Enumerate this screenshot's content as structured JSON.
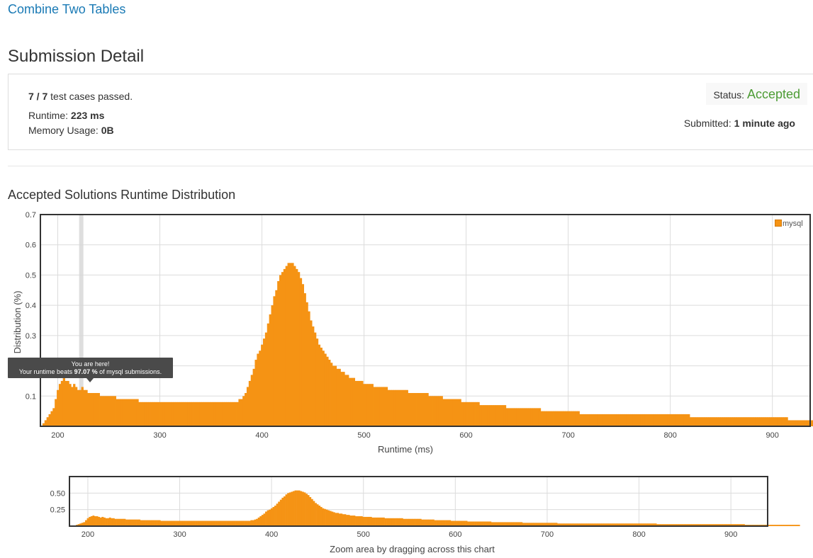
{
  "problem": {
    "title": "Combine Two Tables"
  },
  "page": {
    "title": "Submission Detail"
  },
  "submission": {
    "tests_passed": "7",
    "tests_sep": " / ",
    "tests_total": "7",
    "tests_suffix": " test cases passed.",
    "runtime_label": "Runtime: ",
    "runtime_value": "223 ms",
    "memory_label": "Memory Usage: ",
    "memory_value": "0B",
    "status_label": "Status: ",
    "status_value": "Accepted",
    "submitted_label": "Submitted: ",
    "submitted_value": "1 minute ago"
  },
  "distribution": {
    "title": "Accepted Solutions Runtime Distribution",
    "tooltip_line1": "You are here!",
    "tooltip_prefix": "Your runtime beats ",
    "tooltip_percent": "97.07 %",
    "tooltip_suffix": " of mysql submissions.",
    "zoom_hint": "Zoom area by dragging across this chart"
  },
  "colors": {
    "bar": "#f59314",
    "accent_link": "#1a7ab5",
    "accepted": "#4d9c35"
  },
  "chart_data": [
    {
      "type": "bar",
      "xlabel": "Runtime (ms)",
      "ylabel": "Distribution (%)",
      "xlim": [
        183,
        937
      ],
      "ylim": [
        0,
        0.7
      ],
      "xticks": [
        200,
        300,
        400,
        500,
        600,
        700,
        800,
        900
      ],
      "yticks": [
        0.1,
        0.2,
        0.3,
        0.4,
        0.5,
        0.6,
        0.7
      ],
      "legend": "mysql",
      "legend_position": "top-right",
      "highlight_x": 223,
      "series": [
        {
          "name": "mysql",
          "x_start": 186,
          "x_step": 2,
          "values": [
            0.01,
            0.02,
            0.03,
            0.04,
            0.05,
            0.06,
            0.09,
            0.12,
            0.14,
            0.15,
            0.16,
            0.15,
            0.15,
            0.14,
            0.13,
            0.14,
            0.13,
            0.12,
            0.12,
            0.13,
            0.12,
            0.12,
            0.11,
            0.11,
            0.11,
            0.11,
            0.11,
            0.11,
            0.1,
            0.1,
            0.1,
            0.1,
            0.1,
            0.1,
            0.1,
            0.1,
            0.09,
            0.09,
            0.09,
            0.09,
            0.09,
            0.09,
            0.09,
            0.09,
            0.09,
            0.09,
            0.09,
            0.08,
            0.08,
            0.08,
            0.08,
            0.08,
            0.08,
            0.08,
            0.08,
            0.08,
            0.08,
            0.08,
            0.08,
            0.08,
            0.08,
            0.08,
            0.08,
            0.08,
            0.08,
            0.08,
            0.08,
            0.08,
            0.08,
            0.08,
            0.08,
            0.08,
            0.08,
            0.08,
            0.08,
            0.08,
            0.08,
            0.08,
            0.08,
            0.08,
            0.08,
            0.08,
            0.08,
            0.08,
            0.08,
            0.08,
            0.08,
            0.08,
            0.08,
            0.08,
            0.08,
            0.08,
            0.08,
            0.08,
            0.08,
            0.08,
            0.09,
            0.09,
            0.1,
            0.11,
            0.13,
            0.15,
            0.17,
            0.19,
            0.22,
            0.24,
            0.25,
            0.27,
            0.29,
            0.31,
            0.34,
            0.37,
            0.4,
            0.43,
            0.45,
            0.48,
            0.5,
            0.51,
            0.52,
            0.53,
            0.54,
            0.54,
            0.54,
            0.53,
            0.52,
            0.51,
            0.49,
            0.47,
            0.44,
            0.41,
            0.38,
            0.35,
            0.33,
            0.31,
            0.29,
            0.27,
            0.26,
            0.25,
            0.24,
            0.23,
            0.22,
            0.21,
            0.2,
            0.2,
            0.19,
            0.19,
            0.18,
            0.18,
            0.17,
            0.17,
            0.16,
            0.16,
            0.16,
            0.15,
            0.15,
            0.15,
            0.15,
            0.14,
            0.14,
            0.14,
            0.14,
            0.14,
            0.13,
            0.13,
            0.13,
            0.13,
            0.13,
            0.13,
            0.13,
            0.12,
            0.12,
            0.12,
            0.12,
            0.12,
            0.12,
            0.12,
            0.12,
            0.12,
            0.12,
            0.11,
            0.11,
            0.11,
            0.11,
            0.11,
            0.11,
            0.11,
            0.11,
            0.11,
            0.11,
            0.1,
            0.1,
            0.1,
            0.1,
            0.1,
            0.1,
            0.1,
            0.09,
            0.09,
            0.09,
            0.09,
            0.09,
            0.09,
            0.09,
            0.09,
            0.09,
            0.08,
            0.08,
            0.08,
            0.08,
            0.08,
            0.08,
            0.08,
            0.08,
            0.08,
            0.07,
            0.07,
            0.07,
            0.07,
            0.07,
            0.07,
            0.07,
            0.07,
            0.07,
            0.07,
            0.07,
            0.07,
            0.07,
            0.06,
            0.06,
            0.06,
            0.06,
            0.06,
            0.06,
            0.06,
            0.06,
            0.06,
            0.06,
            0.06,
            0.06,
            0.06,
            0.06,
            0.06,
            0.06,
            0.06,
            0.05,
            0.05,
            0.05,
            0.05,
            0.05,
            0.05,
            0.05,
            0.05,
            0.05,
            0.05,
            0.05,
            0.05,
            0.05,
            0.05,
            0.05,
            0.05,
            0.05,
            0.05,
            0.05,
            0.04,
            0.04,
            0.04,
            0.04,
            0.04,
            0.04,
            0.04,
            0.04,
            0.04,
            0.04,
            0.04,
            0.04,
            0.04,
            0.04,
            0.04,
            0.04,
            0.04,
            0.04,
            0.04,
            0.04,
            0.04,
            0.04,
            0.04,
            0.04,
            0.04,
            0.04,
            0.04,
            0.04,
            0.04,
            0.04,
            0.04,
            0.04,
            0.04,
            0.04,
            0.04,
            0.04,
            0.04,
            0.04,
            0.04,
            0.04,
            0.04,
            0.04,
            0.04,
            0.04,
            0.04,
            0.04,
            0.04,
            0.04,
            0.04,
            0.04,
            0.04,
            0.04,
            0.04,
            0.04,
            0.03,
            0.03,
            0.03,
            0.03,
            0.03,
            0.03,
            0.03,
            0.03,
            0.03,
            0.03,
            0.03,
            0.03,
            0.03,
            0.03,
            0.03,
            0.03,
            0.03,
            0.03,
            0.03,
            0.03,
            0.03,
            0.03,
            0.03,
            0.03,
            0.03,
            0.03,
            0.03,
            0.03,
            0.03,
            0.03,
            0.03,
            0.03,
            0.03,
            0.03,
            0.03,
            0.03,
            0.03,
            0.03,
            0.03,
            0.03,
            0.03,
            0.03,
            0.03,
            0.03,
            0.03,
            0.03,
            0.03,
            0.03,
            0.02,
            0.02,
            0.02,
            0.02,
            0.02,
            0.02,
            0.02,
            0.02,
            0.02,
            0.02,
            0.02,
            0.02,
            0.02,
            0.02,
            0.02,
            0.02,
            0.02,
            0.02,
            0.02,
            0.02,
            0.02,
            0.02,
            0.02,
            0.02,
            0.02,
            0.02,
            0.02,
            0.02,
            0.02,
            0.02
          ]
        }
      ]
    },
    {
      "type": "bar",
      "xlim": [
        180,
        940
      ],
      "ylim": [
        0,
        0.75
      ],
      "xticks": [
        200,
        300,
        400,
        500,
        600,
        700,
        800,
        900
      ],
      "yticks": [
        0.25,
        0.5
      ]
    }
  ]
}
